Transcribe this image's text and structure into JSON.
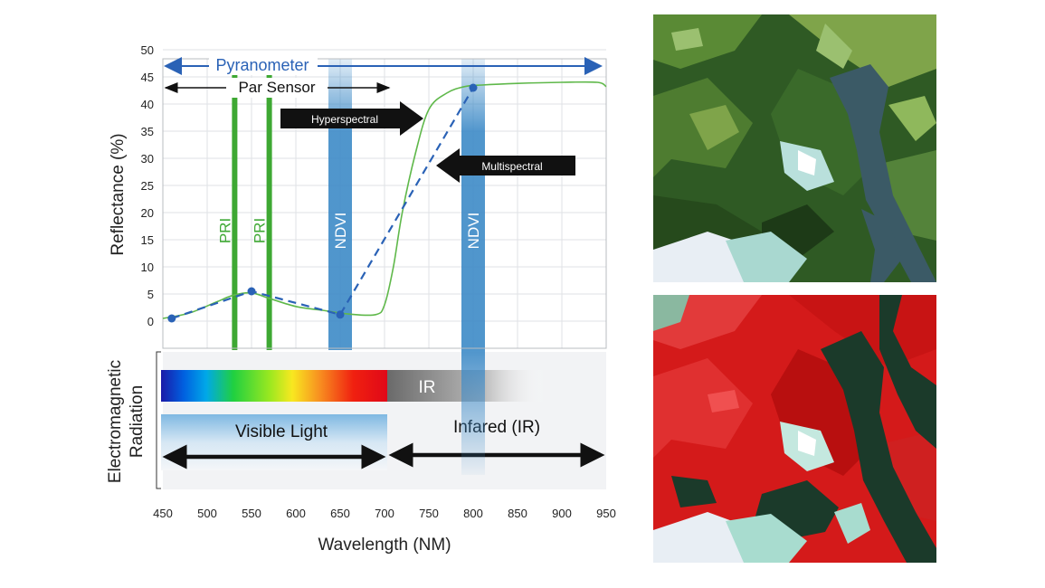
{
  "chart_data": {
    "type": "line",
    "xlabel": "Wavelength (NM)",
    "ylabel": "Reflectance (%)",
    "xlim": [
      450,
      950
    ],
    "ylim": [
      0,
      50
    ],
    "x_ticks": [
      450,
      500,
      550,
      600,
      650,
      700,
      750,
      800,
      850,
      900,
      950
    ],
    "y_ticks": [
      0,
      5,
      10,
      15,
      20,
      25,
      30,
      35,
      40,
      45,
      50
    ],
    "grid": true,
    "series": [
      {
        "style": "solid-green",
        "color": "#5fb84a",
        "x": [
          450,
          480,
          510,
          530,
          550,
          570,
          600,
          630,
          660,
          690,
          700,
          710,
          720,
          735,
          750,
          770,
          790,
          810,
          850,
          900,
          940,
          950
        ],
        "y": [
          0.5,
          1.5,
          3.5,
          4.8,
          5.2,
          4.2,
          2.7,
          2.0,
          1.3,
          1.2,
          3.0,
          10.0,
          20.0,
          31.0,
          39.0,
          42.0,
          43.2,
          43.5,
          43.8,
          44.0,
          44.0,
          43.2
        ]
      },
      {
        "style": "dashed-blue",
        "color": "#2a62b6",
        "x": [
          460,
          550,
          650,
          800
        ],
        "y": [
          0.5,
          5.5,
          1.2,
          43.0
        ]
      }
    ],
    "bands": [
      {
        "label": "PRI",
        "x": 531,
        "color": "#3ea833",
        "label_color": "#3ea833"
      },
      {
        "label": "PRI",
        "x": 570,
        "color": "#3ea833",
        "label_color": "#3ea833"
      },
      {
        "label": "NDVI",
        "x": 650,
        "color": "#3d8ac7",
        "label_color": "#ffffff"
      },
      {
        "label": "NDVI",
        "x": 800,
        "color": "#3d8ac7",
        "label_color": "#ffffff"
      }
    ],
    "annotations": {
      "pyranometer": {
        "label": "Pyranometer",
        "from": 450,
        "to": 950,
        "color": "#2a62b6"
      },
      "par_sensor": {
        "label": "Par Sensor",
        "from": 450,
        "to": 700,
        "color": "#111111"
      },
      "hyperspectral": {
        "label": "Hyperspectral",
        "direction": "right"
      },
      "multispectral": {
        "label": "Multispectral",
        "direction": "left"
      }
    },
    "em_radiation": {
      "label_line1": "Electromagnetic",
      "label_line2": "Radiation",
      "ir_label": "IR",
      "visible_label": "Visible Light",
      "infrared_label": "Infared (IR)"
    }
  },
  "images": {
    "top": {
      "description_icon": "true-color-satellite-image"
    },
    "bottom": {
      "description_icon": "false-color-infrared-satellite-image"
    }
  },
  "colors": {
    "accent_blue": "#2a62b6",
    "green_curve": "#5fb84a",
    "band_blue": "#3d8ac7",
    "pri_green": "#3ea833"
  }
}
